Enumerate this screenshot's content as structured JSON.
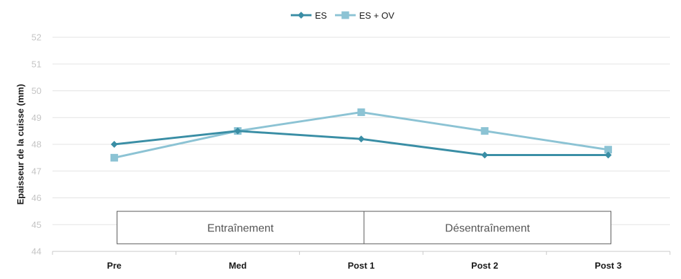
{
  "chart_data": {
    "type": "line",
    "categories": [
      "Pre",
      "Med",
      "Post 1",
      "Post 2",
      "Post 3"
    ],
    "ylabel": "Epaisseur de la cuisse (mm)",
    "ylim": [
      44,
      52
    ],
    "yticks": [
      "44",
      "45",
      "46",
      "47",
      "48",
      "49",
      "50",
      "51",
      "52"
    ],
    "grid": true,
    "legend_position": "top-center",
    "series": [
      {
        "name": "ES",
        "values": [
          48.0,
          48.5,
          48.2,
          47.6,
          47.6
        ],
        "color": "#3a8ea5",
        "marker": "diamond"
      },
      {
        "name": "ES + OV",
        "values": [
          47.5,
          48.5,
          49.2,
          48.5,
          47.8
        ],
        "color": "#8cc3d4",
        "marker": "square"
      }
    ],
    "annotations": [
      {
        "label": "Entraînement",
        "from": "Pre",
        "to": "Post 1"
      },
      {
        "label": "Désentraînement",
        "from": "Post 1",
        "to": "Post 3"
      }
    ]
  }
}
